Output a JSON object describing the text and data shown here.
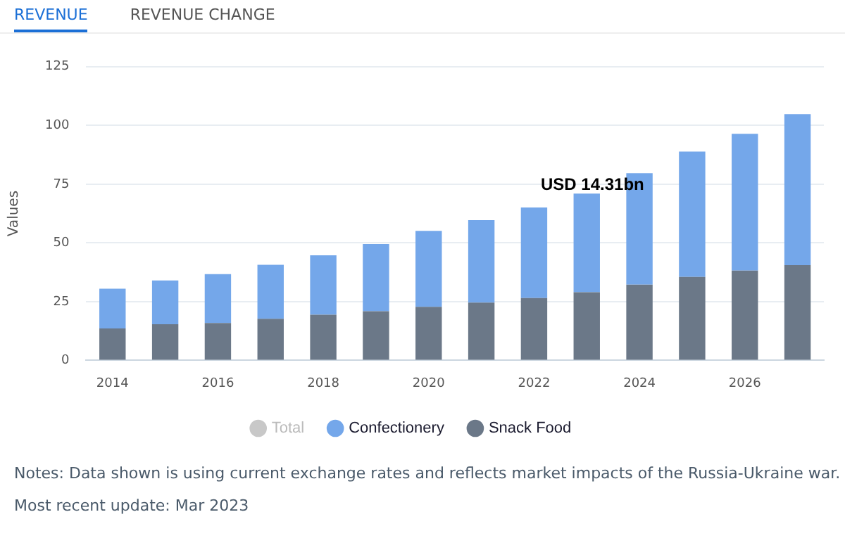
{
  "chart_data": {
    "type": "bar",
    "stacked": true,
    "ylabel": "Values",
    "categories": [
      "2014",
      null,
      "2016",
      null,
      "2018",
      null,
      "2020",
      null,
      "2022",
      null,
      "2024",
      null,
      "2026",
      null
    ],
    "series": [
      {
        "name": "Total",
        "color": "#c8c8c8",
        "values": [
          null,
          null,
          null,
          null,
          null,
          null,
          null,
          null,
          null,
          null,
          null,
          null,
          null,
          null
        ]
      },
      {
        "name": "Snack Food",
        "color": "#6b7888",
        "values": [
          13.6,
          15.4,
          15.9,
          17.7,
          19.4,
          20.9,
          22.8,
          24.6,
          26.5,
          29.0,
          32.2,
          35.5,
          38.2,
          40.5
        ]
      },
      {
        "name": "Confectionery",
        "color": "#74a7ea",
        "values": [
          16.9,
          18.6,
          20.8,
          23.0,
          25.3,
          28.6,
          32.3,
          35.1,
          38.6,
          42.0,
          47.5,
          53.4,
          58.2,
          64.3
        ]
      }
    ],
    "ylim": [
      0,
      125
    ],
    "yticks": [
      0,
      25,
      50,
      75,
      100,
      125
    ],
    "grid": "y",
    "legend": "bottom",
    "annotations": [
      "REVENUE",
      "REVENUE CHANGE",
      "USD 14.31bn",
      "Notes: Data shown is using current exchange rates and reflects market impacts of the Russia-Ukraine war.",
      "Most recent update: Mar 2023"
    ]
  }
}
